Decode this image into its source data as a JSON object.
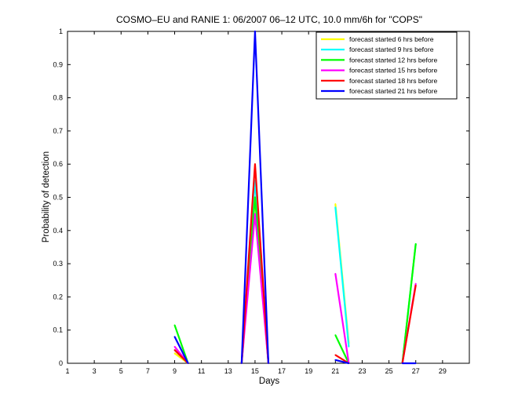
{
  "chart_data": {
    "type": "line",
    "title": "COSMO–EU and RANIE 1: 06/2007 06–12 UTC, 10.0 mm/6h for \"COPS\"",
    "xlabel": "Days",
    "ylabel": "Probability of detection",
    "xlim": [
      1,
      31
    ],
    "ylim": [
      0,
      1
    ],
    "xticks": [
      1,
      3,
      5,
      7,
      9,
      11,
      13,
      15,
      17,
      19,
      21,
      23,
      25,
      27,
      29
    ],
    "yticks": [
      0,
      0.1,
      0.2,
      0.3,
      0.4,
      0.5,
      0.6,
      0.7,
      0.8,
      0.9,
      1
    ],
    "ytick_labels": [
      "0",
      "0.1",
      "0.2",
      "0.3",
      "0.4",
      "0.5",
      "0.6",
      "0.7",
      "0.8",
      "0.9",
      "1"
    ],
    "grid": false,
    "legend_position": "top-right",
    "series": [
      {
        "name": "forecast started 6 hrs before",
        "color": "#ffff00",
        "points": [
          [
            9,
            0.03
          ],
          [
            10,
            0
          ],
          [
            14,
            0
          ],
          [
            15,
            0.5
          ],
          [
            16,
            0
          ],
          [
            21,
            0.48
          ],
          [
            22,
            0.06
          ],
          [
            26,
            0
          ],
          [
            27,
            0.36
          ]
        ]
      },
      {
        "name": "forecast started 9 hrs before",
        "color": "#00ffff",
        "points": [
          [
            9,
            0.04
          ],
          [
            10,
            0
          ],
          [
            14,
            0
          ],
          [
            15,
            0.55
          ],
          [
            16,
            0
          ],
          [
            21,
            0.47
          ],
          [
            22,
            0.05
          ],
          [
            26,
            0
          ],
          [
            27,
            0.36
          ]
        ]
      },
      {
        "name": "forecast started 12 hrs before",
        "color": "#00ff00",
        "points": [
          [
            9,
            0.115
          ],
          [
            10,
            0
          ],
          [
            14,
            0
          ],
          [
            15,
            0.5
          ],
          [
            16,
            0
          ],
          [
            21,
            0.085
          ],
          [
            22,
            0
          ],
          [
            26,
            0
          ],
          [
            27,
            0.36
          ]
        ]
      },
      {
        "name": "forecast started 15 hrs before",
        "color": "#ff00ff",
        "points": [
          [
            9,
            0.05
          ],
          [
            10,
            0
          ],
          [
            14,
            0
          ],
          [
            15,
            0.45
          ],
          [
            16,
            0
          ],
          [
            21,
            0.27
          ],
          [
            22,
            0
          ],
          [
            26,
            0
          ],
          [
            27,
            0.24
          ]
        ]
      },
      {
        "name": "forecast started 18 hrs before",
        "color": "#ff0000",
        "points": [
          [
            9,
            0.04
          ],
          [
            10,
            0
          ],
          [
            14,
            0
          ],
          [
            15,
            0.6
          ],
          [
            16,
            0
          ],
          [
            21,
            0.025
          ],
          [
            22,
            0
          ],
          [
            26,
            0
          ],
          [
            27,
            0.235
          ]
        ]
      },
      {
        "name": "forecast started 21 hrs before",
        "color": "#0000ff",
        "points": [
          [
            9,
            0.08
          ],
          [
            10,
            0
          ],
          [
            14,
            0
          ],
          [
            15,
            1.0
          ],
          [
            16,
            0
          ],
          [
            21,
            0.01
          ],
          [
            22,
            0
          ],
          [
            26,
            0
          ],
          [
            27,
            0
          ]
        ]
      }
    ]
  }
}
